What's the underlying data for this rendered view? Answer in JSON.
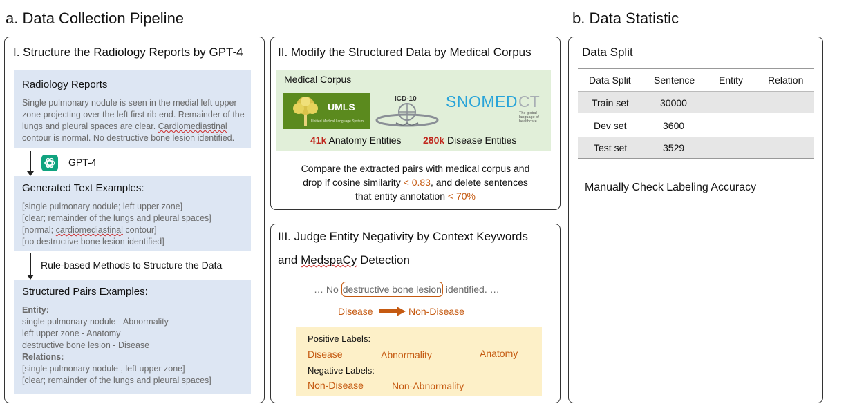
{
  "section_a": {
    "title": "a. Data Collection Pipeline"
  },
  "section_b": {
    "title": "b. Data Statistic"
  },
  "panel_1": {
    "title": "I. Structure the Radiology Reports by GPT-4",
    "reports": {
      "title": "Radiology Reports",
      "lines": [
        "Single pulmonary nodule is seen in the medial left upper",
        "zone projecting over the left first rib end. Remainder of the",
        "lungs and pleural spaces are clear. ",
        "Cardiomediastinal",
        "contour is normal. No destructive bone lesion identified."
      ]
    },
    "gpt_label": "GPT-4",
    "generated": {
      "title": "Generated Text Examples:",
      "lines": [
        "[single pulmonary nodule; left upper zone]",
        "[clear; remainder of the lungs and pleural spaces]",
        "[normal; ",
        "cardiomediastinal",
        " contour]",
        "[no destructive bone lesion identified]"
      ]
    },
    "rule_label": "Rule-based Methods to Structure the Data",
    "structured": {
      "title": "Structured Pairs Examples:",
      "entity_header": "Entity:",
      "entity_lines": [
        "single pulmonary nodule - Abnormality",
        "left upper zone - Anatomy",
        "destructive bone lesion - Disease"
      ],
      "relations_header": "Relations:",
      "relation_lines": [
        "[single pulmonary nodule ,  left upper zone]",
        "[clear; remainder of the lungs and pleural spaces]"
      ]
    }
  },
  "panel_2": {
    "title": "II. Modify the Structured Data by Medical Corpus",
    "corpus_title": "Medical Corpus",
    "logos": {
      "umls": "UMLS",
      "umls_sub": "Unified Medical Language System",
      "icd": "ICD-10",
      "snomed_a": "SNOMED",
      "snomed_b": "CT",
      "snomed_sub1": "The global",
      "snomed_sub2": "language of",
      "snomed_sub3": "healthcare"
    },
    "anatomy_count": "41k",
    "anatomy_label": " Anatomy Entities",
    "disease_count": "280k",
    "disease_label": " Disease Entities",
    "desc_line1": "Compare the extracted pairs with medical corpus and",
    "desc_line2_a": "drop if cosine similarity ",
    "desc_line2_b": "< 0.83",
    "desc_line2_c": ", and delete sentences",
    "desc_line3_a": "that entity annotation ",
    "desc_line3_b": "< 70%"
  },
  "panel_3": {
    "title_line1": "III.  Judge Entity Negativity by Context Keywords",
    "title_line2_a": "and ",
    "title_line2_b": "MedspaCy",
    "title_line2_c": " Detection",
    "example_pre": "… No ",
    "example_entity": "destructive bone lesion",
    "example_post": " identified. …",
    "from_label": "Disease",
    "to_label": "Non-Disease",
    "positive_title": "Positive Labels:",
    "positive_labels": [
      "Disease",
      "Abnormality",
      "Anatomy"
    ],
    "negative_title": "Negative Labels:",
    "negative_labels": [
      "Non-Disease",
      "Non-Abnormality"
    ]
  },
  "panel_4": {
    "title": "Data Split",
    "table": {
      "headers": [
        "Data Split",
        "Sentence",
        "Entity",
        "Relation"
      ],
      "rows": [
        [
          "Train set",
          "30000",
          "",
          ""
        ],
        [
          "Dev set",
          "3600",
          "",
          ""
        ],
        [
          "Test set",
          "3529",
          "",
          ""
        ]
      ]
    },
    "note": "Manually Check Labeling  Accuracy"
  },
  "colors": {
    "blue_box": "#dde6f3",
    "green_box": "#e1efd9",
    "yellow_box": "#fdf0c8",
    "red_highlight": "#c0281e",
    "orange_highlight": "#c55a11",
    "table_stripe": "#e6e6e6"
  }
}
